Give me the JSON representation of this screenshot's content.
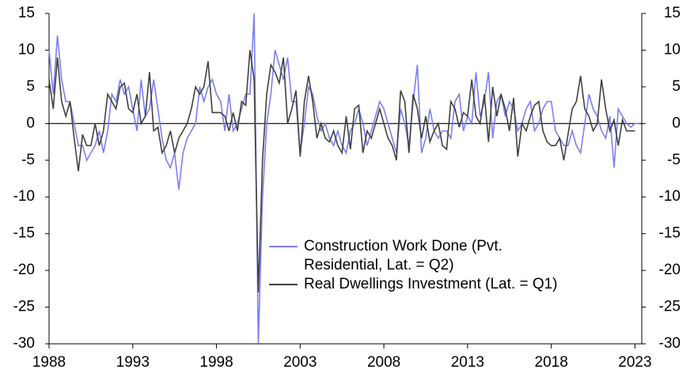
{
  "chart_data": {
    "type": "line",
    "x": [
      1988,
      1988.25,
      1988.5,
      1988.75,
      1989,
      1989.25,
      1989.5,
      1989.75,
      1990,
      1990.25,
      1990.5,
      1990.75,
      1991,
      1991.25,
      1991.5,
      1991.75,
      1992,
      1992.25,
      1992.5,
      1992.75,
      1993,
      1993.25,
      1993.5,
      1993.75,
      1994,
      1994.25,
      1994.5,
      1994.75,
      1995,
      1995.25,
      1995.5,
      1995.75,
      1996,
      1996.25,
      1996.5,
      1996.75,
      1997,
      1997.25,
      1997.5,
      1997.75,
      1998,
      1998.25,
      1998.5,
      1998.75,
      1999,
      1999.25,
      1999.5,
      1999.75,
      2000,
      2000.25,
      2000.5,
      2000.75,
      2001,
      2001.25,
      2001.5,
      2001.75,
      2002,
      2002.25,
      2002.5,
      2002.75,
      2003,
      2003.25,
      2003.5,
      2003.75,
      2004,
      2004.25,
      2004.5,
      2004.75,
      2005,
      2005.25,
      2005.5,
      2005.75,
      2006,
      2006.25,
      2006.5,
      2006.75,
      2007,
      2007.25,
      2007.5,
      2007.75,
      2008,
      2008.25,
      2008.5,
      2008.75,
      2009,
      2009.25,
      2009.5,
      2009.75,
      2010,
      2010.25,
      2010.5,
      2010.75,
      2011,
      2011.25,
      2011.5,
      2011.75,
      2012,
      2012.25,
      2012.5,
      2012.75,
      2013,
      2013.25,
      2013.5,
      2013.75,
      2014,
      2014.25,
      2014.5,
      2014.75,
      2015,
      2015.25,
      2015.5,
      2015.75,
      2016,
      2016.25,
      2016.5,
      2016.75,
      2017,
      2017.25,
      2017.5,
      2017.75,
      2018,
      2018.25,
      2018.5,
      2018.75,
      2019,
      2019.25,
      2019.5,
      2019.75,
      2020,
      2020.25,
      2020.5,
      2020.75,
      2021,
      2021.25,
      2021.5,
      2021.75,
      2022,
      2022.25,
      2022.5,
      2022.75,
      2023,
      2023.25
    ],
    "series": [
      {
        "name": "Construction Work Done (Pvt. Residential, Lat. = Q2)",
        "color": "#7b7ff0",
        "values": [
          10,
          4,
          12,
          6,
          3,
          3,
          0,
          -3,
          -3,
          -5,
          -4,
          -3,
          -1,
          -4,
          -1,
          4,
          3,
          6,
          4,
          5,
          2,
          -1,
          6,
          1,
          2,
          6,
          2,
          -2,
          -5,
          -6,
          -4,
          -9,
          -4,
          -2,
          -1,
          0,
          5,
          3,
          5,
          6,
          4,
          3,
          -1,
          4,
          -1,
          0,
          2,
          4,
          4,
          15,
          -30,
          -10,
          0,
          4,
          10,
          8,
          6,
          9,
          3,
          3,
          -4,
          0,
          5,
          4,
          1,
          -1,
          0,
          -2,
          -3,
          -1,
          -3,
          -4,
          -1,
          0,
          2,
          0,
          -3,
          -1,
          1,
          3,
          2,
          0,
          -2,
          -4,
          2,
          0,
          -3,
          3,
          8,
          -4,
          -2,
          2,
          -1,
          -2,
          -1,
          -1,
          -2,
          3,
          4,
          -1,
          1,
          0,
          7,
          1,
          3,
          7,
          -2,
          3,
          4,
          1,
          3,
          2,
          -1,
          0,
          2,
          3,
          -1,
          0,
          2,
          3,
          3,
          -1,
          -2,
          -3,
          -3,
          -1,
          -3,
          -4,
          0,
          4,
          2,
          1,
          -1,
          -2,
          1,
          -6,
          2,
          1,
          0,
          -0.5,
          0,
          0
        ]
      },
      {
        "name": "Real Dwellings Investment (Lat. = Q1)",
        "color": "#404040",
        "values": [
          6,
          2,
          9,
          3,
          1,
          3,
          -2,
          -6.5,
          -1.5,
          -3,
          -3,
          0,
          -3,
          -1,
          4,
          3,
          2,
          5,
          5.5,
          2,
          1.5,
          4,
          0,
          1,
          7,
          -1,
          -0.5,
          -4,
          -3,
          -1,
          -4,
          -2,
          -1,
          0,
          2,
          5,
          4,
          5,
          8.5,
          1.5,
          1.5,
          1.5,
          1,
          -1,
          1.5,
          -1,
          3,
          2.5,
          10,
          6,
          -23,
          -5,
          4,
          8,
          7,
          5.5,
          9,
          0,
          2,
          4.5,
          -4.5,
          3,
          6.5,
          3,
          -2,
          0,
          -2,
          -2.5,
          -1,
          -3,
          -4,
          1,
          -3.5,
          2,
          2.5,
          -4,
          -1,
          -2,
          0,
          2,
          0,
          -2,
          -3,
          -5,
          4.5,
          3,
          -4,
          4,
          2,
          -2,
          1,
          -2.5,
          -1,
          0,
          -3,
          -3.5,
          3,
          2,
          -0.5,
          1.5,
          1,
          6,
          1,
          0,
          4,
          -2.5,
          5,
          1,
          4,
          2,
          -1,
          3.5,
          -4.5,
          0,
          -1,
          1,
          2.5,
          3,
          -1,
          -2.5,
          -3,
          -3,
          -2,
          -5,
          -1.5,
          2,
          3,
          6.5,
          2,
          1,
          -1,
          0,
          6,
          2,
          -1,
          0.5,
          -3,
          0.5,
          -1,
          -1,
          -1,
          null
        ]
      }
    ],
    "xlim": [
      1988,
      2023.5
    ],
    "xticks": [
      1988,
      1993,
      1998,
      2003,
      2008,
      2013,
      2018,
      2023
    ],
    "ylim": [
      -30,
      15
    ],
    "yticks": [
      -30,
      -25,
      -20,
      -15,
      -10,
      -5,
      0,
      5,
      10,
      15
    ],
    "y2lim": [
      -30,
      15
    ],
    "y2ticks": [
      -30,
      -25,
      -20,
      -15,
      -10,
      -5,
      0,
      5,
      10,
      15
    ],
    "legend": "lower-center"
  }
}
